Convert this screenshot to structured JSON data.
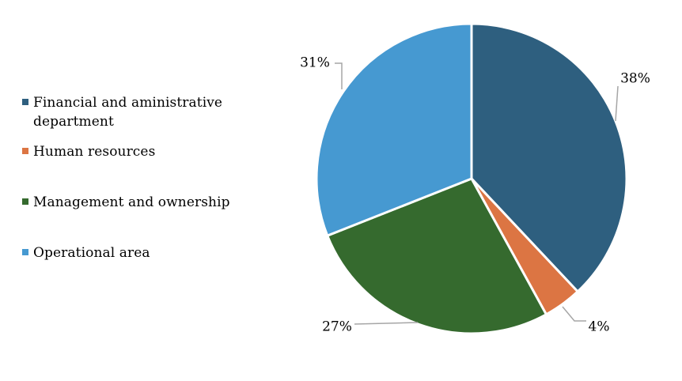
{
  "chart_data": {
    "type": "pie",
    "categories": [
      "Financial and aministrative department",
      "Human resources",
      "Management and ownership",
      "Operational area"
    ],
    "values": [
      38,
      4,
      27,
      31
    ],
    "value_labels": [
      "38%",
      "4%",
      "27%",
      "31%"
    ],
    "colors": [
      "#2E5F7F",
      "#DC7543",
      "#356A2E",
      "#4699D1"
    ],
    "legend_placement": "left",
    "start_angle_deg": 0,
    "direction": "clockwise"
  }
}
